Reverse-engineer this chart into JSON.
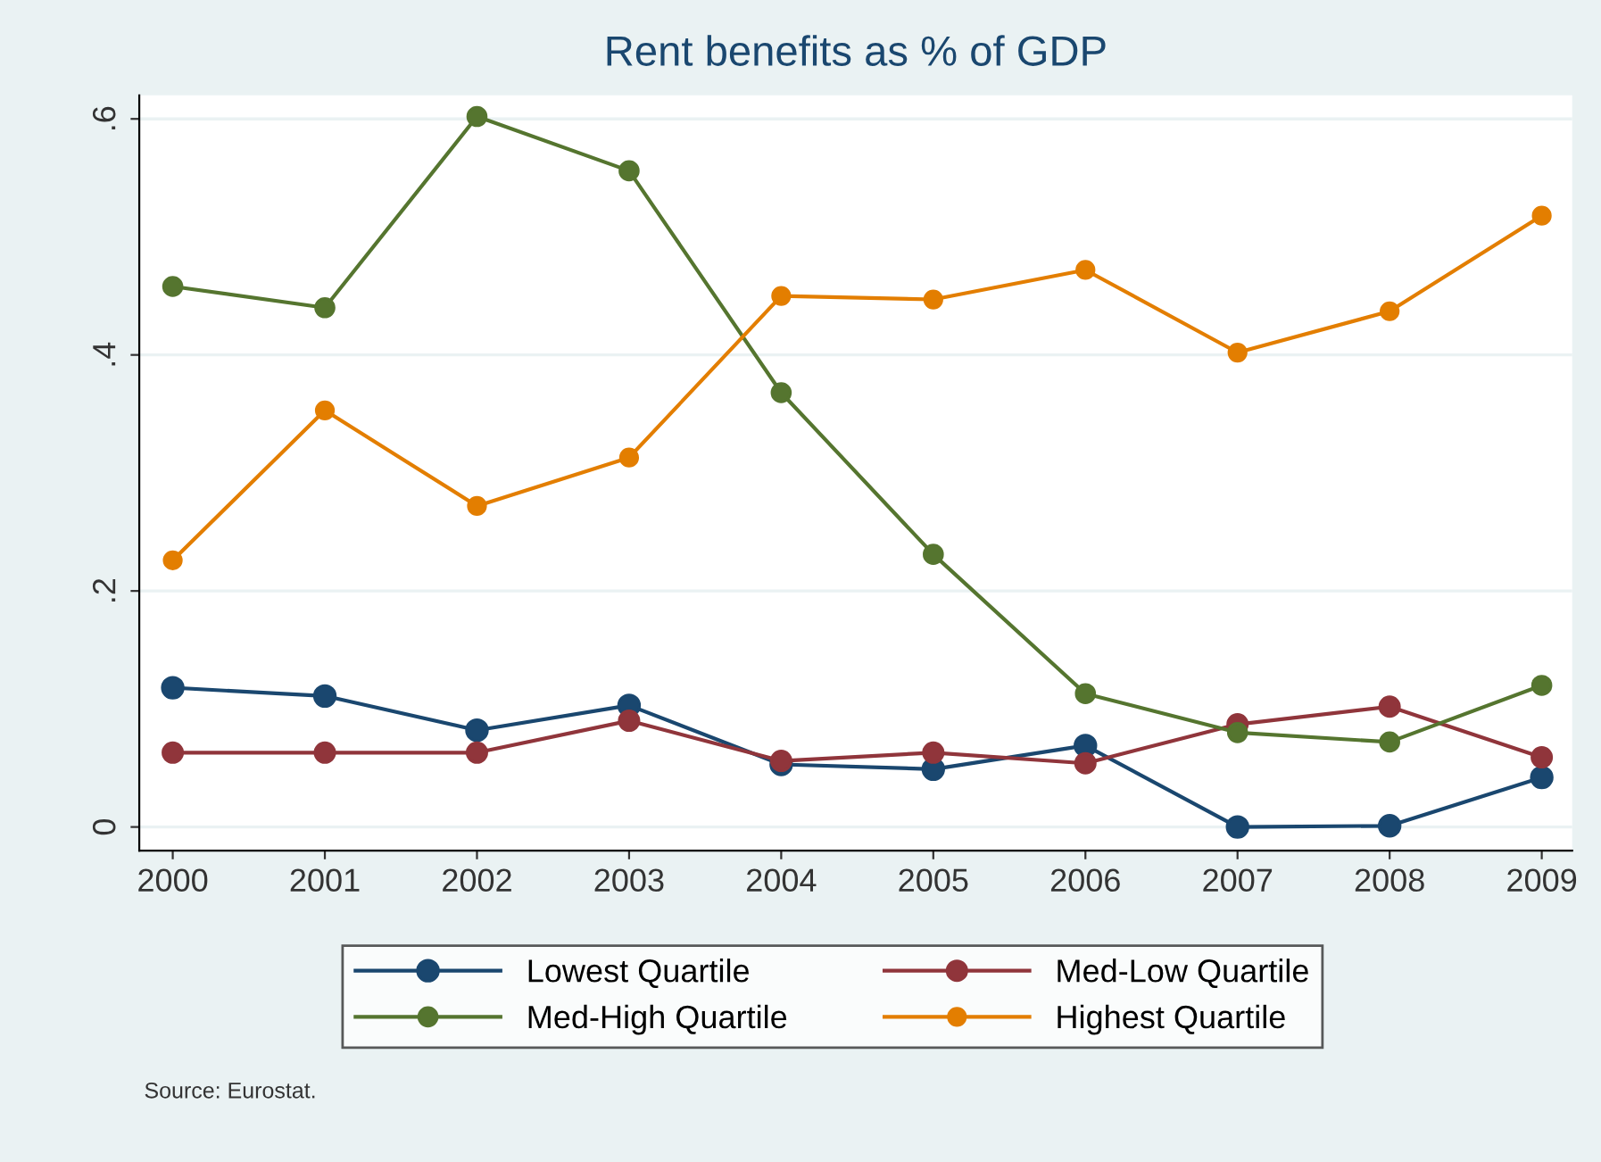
{
  "chart_data": {
    "type": "line",
    "title": "Rent benefits as % of GDP",
    "x": [
      2000,
      2001,
      2002,
      2003,
      2004,
      2005,
      2006,
      2007,
      2008,
      2009
    ],
    "series": [
      {
        "name": "Lowest Quartile",
        "color": "#1a476f",
        "values": [
          0.118,
          0.111,
          0.082,
          0.103,
          0.053,
          0.049,
          0.069,
          0.0,
          0.001,
          0.042
        ]
      },
      {
        "name": "Med-Low Quartile",
        "color": "#90353b",
        "values": [
          0.063,
          0.063,
          0.063,
          0.09,
          0.056,
          0.063,
          0.054,
          0.087,
          0.102,
          0.059
        ]
      },
      {
        "name": "Med-High Quartile",
        "color": "#55752f",
        "values": [
          0.458,
          0.44,
          0.602,
          0.556,
          0.368,
          0.231,
          0.113,
          0.08,
          0.072,
          0.12
        ]
      },
      {
        "name": "Highest Quartile",
        "color": "#e37e00",
        "values": [
          0.226,
          0.353,
          0.272,
          0.313,
          0.45,
          0.447,
          0.472,
          0.402,
          0.437,
          0.518
        ]
      }
    ],
    "xlim": [
      1999.78,
      2009.2
    ],
    "ylim": [
      -0.02,
      0.62
    ],
    "xticks": [
      2000,
      2001,
      2002,
      2003,
      2004,
      2005,
      2006,
      2007,
      2008,
      2009
    ],
    "yticks": [
      {
        "value": 0,
        "label": "0"
      },
      {
        "value": 0.2,
        "label": ".2"
      },
      {
        "value": 0.4,
        "label": ".4"
      },
      {
        "value": 0.6,
        "label": ".6"
      }
    ],
    "grid": "y",
    "legend": "bottom",
    "marker": "circle",
    "line_style": "solid",
    "annotations": [
      "Source: Eurostat."
    ]
  }
}
